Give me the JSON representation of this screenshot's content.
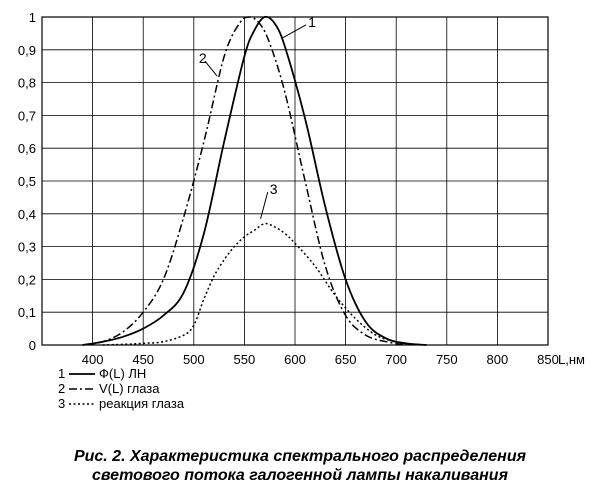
{
  "chart_data": {
    "type": "line",
    "x_unit_label": "L,нм",
    "xlim": [
      350,
      850
    ],
    "ylim": [
      0,
      1
    ],
    "x_ticks": [
      "400",
      "450",
      "500",
      "550",
      "600",
      "650",
      "700",
      "750",
      "800",
      "850"
    ],
    "y_ticks": [
      "0",
      "0,1",
      "0,2",
      "0,3",
      "0,4",
      "0,5",
      "0,6",
      "0,7",
      "0,8",
      "0,9",
      "1"
    ],
    "grid": true,
    "series": [
      {
        "id": "1",
        "style": "solid",
        "x": [
          390,
          410,
          430,
          450,
          470,
          490,
          510,
          530,
          550,
          560,
          570,
          580,
          590,
          610,
          630,
          650,
          670,
          690,
          710,
          730
        ],
        "values": [
          0.0,
          0.01,
          0.025,
          0.05,
          0.09,
          0.16,
          0.34,
          0.62,
          0.88,
          0.96,
          1.0,
          0.98,
          0.91,
          0.69,
          0.42,
          0.2,
          0.07,
          0.02,
          0.005,
          0.0
        ]
      },
      {
        "id": "2",
        "style": "dash-dot",
        "x": [
          390,
          410,
          430,
          450,
          470,
          490,
          510,
          530,
          545,
          555,
          565,
          575,
          590,
          610,
          630,
          650,
          670,
          690,
          710
        ],
        "values": [
          0.0,
          0.01,
          0.04,
          0.1,
          0.2,
          0.39,
          0.62,
          0.88,
          0.98,
          1.0,
          0.98,
          0.92,
          0.77,
          0.5,
          0.24,
          0.09,
          0.03,
          0.01,
          0.0
        ]
      },
      {
        "id": "3",
        "style": "dotted",
        "x": [
          410,
          430,
          450,
          470,
          490,
          500,
          510,
          520,
          530,
          540,
          550,
          560,
          570,
          580,
          590,
          600,
          620,
          640,
          660,
          680,
          700,
          720
        ],
        "values": [
          0.0,
          0.002,
          0.005,
          0.01,
          0.03,
          0.06,
          0.14,
          0.21,
          0.26,
          0.3,
          0.33,
          0.35,
          0.37,
          0.36,
          0.34,
          0.31,
          0.24,
          0.15,
          0.08,
          0.03,
          0.01,
          0.0
        ]
      }
    ],
    "curve_labels": [
      {
        "text": "1",
        "x": 613,
        "y": 0.97,
        "lead_x": 587,
        "lead_y": 0.935
      },
      {
        "text": "2",
        "x": 505,
        "y": 0.86,
        "lead_x": 523,
        "lead_y": 0.82
      },
      {
        "text": "3",
        "x": 575,
        "y": 0.46,
        "lead_x": 566,
        "lead_y": 0.385
      }
    ],
    "legend": [
      {
        "num": "1",
        "style": "solid",
        "text": "Ф(L) ЛН"
      },
      {
        "num": "2",
        "style": "dash-dot",
        "text": "V(L) глаза"
      },
      {
        "num": "3",
        "style": "dotted",
        "text": "реакция глаза"
      }
    ]
  },
  "caption": {
    "line1": "Рис. 2. Характеристика спектрального распределения",
    "line2": "светового потока галогенной лампы накаливания"
  }
}
